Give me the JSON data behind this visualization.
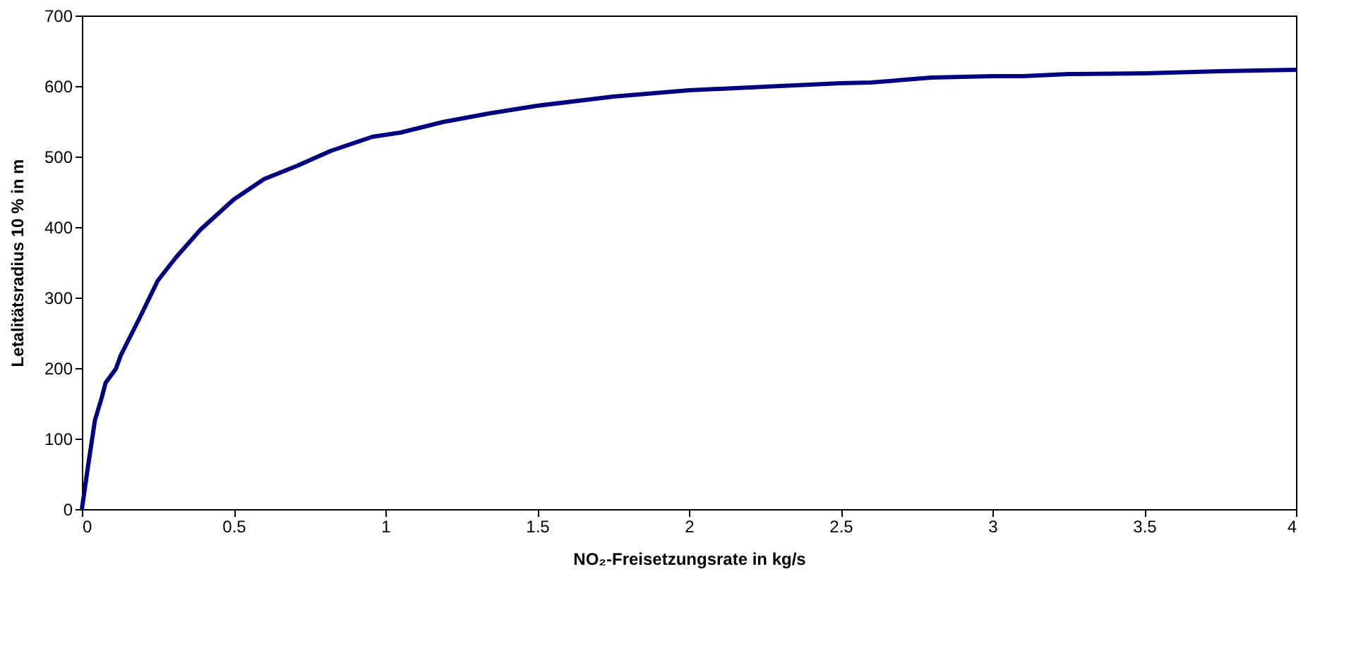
{
  "chart_data": {
    "type": "line",
    "xlabel": "NO₂-Freisetzungsrate in kg/s",
    "ylabel": "Letalitätsradius 10 % in m",
    "x": [
      0,
      0.02,
      0.043,
      0.066,
      0.078,
      0.112,
      0.128,
      0.19,
      0.25,
      0.31,
      0.39,
      0.5,
      0.6,
      0.71,
      0.82,
      0.957,
      1.05,
      1.19,
      1.34,
      1.5,
      1.75,
      2,
      2.25,
      2.5,
      2.6,
      2.8,
      3,
      3.1,
      3.25,
      3.5,
      3.75,
      4
    ],
    "series": [
      {
        "color": "#000080",
        "values": [
          0,
          60,
          126,
          159,
          179,
          199,
          218,
          271,
          324,
          357,
          396,
          439,
          468,
          487,
          508,
          528,
          534,
          549,
          561,
          572,
          585,
          594,
          599,
          604,
          605,
          612,
          614,
          614,
          617,
          618,
          621,
          623
        ]
      }
    ],
    "xlim": [
      0,
      4
    ],
    "xticks": [
      0,
      0.5,
      1,
      1.5,
      2,
      2.5,
      3,
      3.5,
      4
    ],
    "ylim": [
      0,
      700
    ],
    "yticks": [
      0,
      100,
      200,
      300,
      400,
      500,
      600,
      700
    ],
    "grid": false,
    "legend": false,
    "marker": "none",
    "line_style": "solid"
  }
}
